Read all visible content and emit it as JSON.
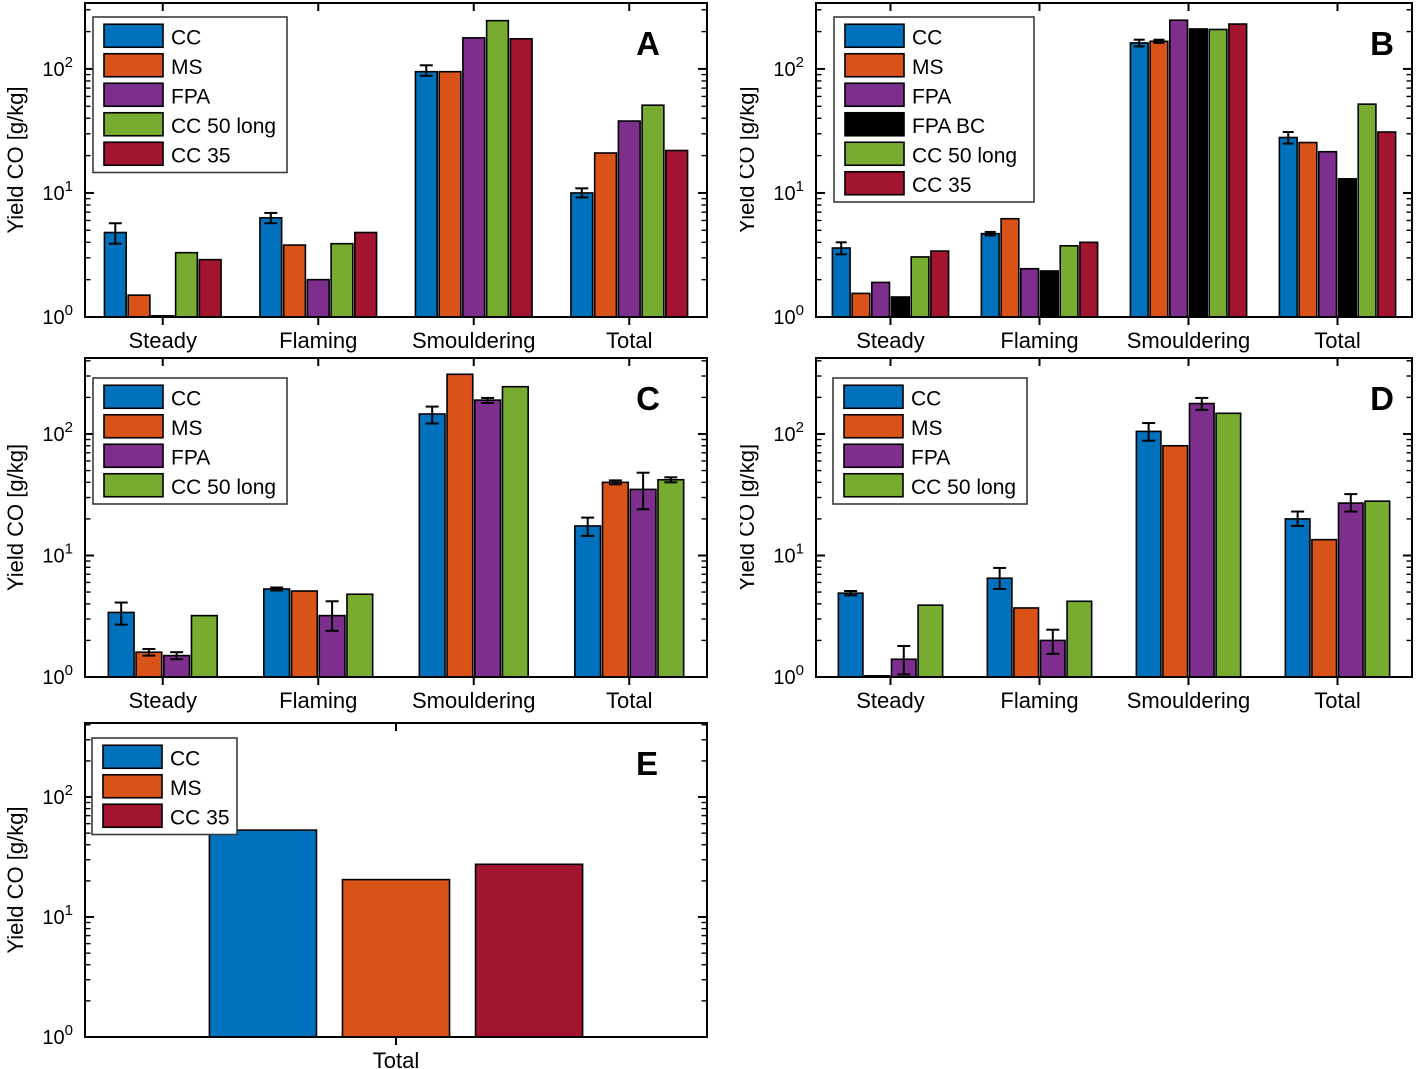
{
  "figure": {
    "background": "#ffffff",
    "axis_color": "#000000",
    "bar_edge_color": "#000000",
    "legend_border_color": "#3b3b3b",
    "ylabel": "Yield CO [g/kg]"
  },
  "chart_data": [
    {
      "id": "A",
      "type": "bar",
      "yscale": "log",
      "panel_label": "A",
      "ylabel": "Yield CO [g/kg]",
      "categories": [
        "Steady",
        "Flaming",
        "Smouldering",
        "Total"
      ],
      "ylim": [
        1,
        340
      ],
      "yticks": [
        1,
        10,
        100
      ],
      "grid": false,
      "legend_position": "top-left",
      "series": [
        {
          "name": "CC",
          "color": "#0072BD",
          "values": [
            4.8,
            6.3,
            95,
            10
          ],
          "errors": [
            [
              3.9,
              5.7
            ],
            [
              5.7,
              6.9
            ],
            [
              88,
              107
            ],
            [
              9.2,
              10.9
            ]
          ]
        },
        {
          "name": "MS",
          "color": "#D95319",
          "values": [
            1.5,
            3.8,
            95,
            21
          ],
          "errors": [
            null,
            null,
            null,
            null
          ]
        },
        {
          "name": "FPA",
          "color": "#7E2F8E",
          "values": [
            1.0,
            2.0,
            178,
            38
          ],
          "errors": [
            null,
            null,
            null,
            null
          ]
        },
        {
          "name": "CC 50 long",
          "color": "#77AC30",
          "values": [
            3.3,
            3.9,
            245,
            51
          ],
          "errors": [
            null,
            null,
            null,
            null
          ]
        },
        {
          "name": "CC 35",
          "color": "#A2142F",
          "values": [
            2.9,
            4.8,
            175,
            22
          ],
          "errors": [
            null,
            null,
            null,
            null
          ]
        }
      ]
    },
    {
      "id": "B",
      "type": "bar",
      "yscale": "log",
      "panel_label": "B",
      "ylabel": "Yield CO [g/kg]",
      "categories": [
        "Steady",
        "Flaming",
        "Smouldering",
        "Total"
      ],
      "ylim": [
        1,
        340
      ],
      "yticks": [
        1,
        10,
        100
      ],
      "grid": false,
      "legend_position": "top-left",
      "series": [
        {
          "name": "CC",
          "color": "#0072BD",
          "values": [
            3.6,
            4.7,
            162,
            28
          ],
          "errors": [
            [
              3.2,
              4.0
            ],
            [
              4.55,
              4.85
            ],
            [
              152,
              172
            ],
            [
              25,
              31
            ]
          ]
        },
        {
          "name": "MS",
          "color": "#D95319",
          "values": [
            1.55,
            6.2,
            167,
            25.5
          ],
          "errors": [
            null,
            null,
            [
              162,
              172
            ],
            null
          ]
        },
        {
          "name": "FPA",
          "color": "#7E2F8E",
          "values": [
            1.9,
            2.45,
            247,
            21.5
          ],
          "errors": [
            null,
            null,
            null,
            null
          ]
        },
        {
          "name": "FPA BC",
          "color": "#000000",
          "values": [
            1.45,
            2.35,
            210,
            13
          ],
          "errors": [
            null,
            null,
            null,
            null
          ]
        },
        {
          "name": "CC 50 long",
          "color": "#77AC30",
          "values": [
            3.05,
            3.75,
            208,
            52
          ],
          "errors": [
            null,
            null,
            null,
            null
          ]
        },
        {
          "name": "CC 35",
          "color": "#A2142F",
          "values": [
            3.4,
            4.0,
            230,
            31
          ],
          "errors": [
            null,
            null,
            null,
            null
          ]
        }
      ]
    },
    {
      "id": "C",
      "type": "bar",
      "yscale": "log",
      "panel_label": "C",
      "ylabel": "Yield CO [g/kg]",
      "categories": [
        "Steady",
        "Flaming",
        "Smouldering",
        "Total"
      ],
      "ylim": [
        1,
        422
      ],
      "yticks": [
        1,
        10,
        100
      ],
      "grid": false,
      "legend_position": "top-left",
      "series": [
        {
          "name": "CC",
          "color": "#0072BD",
          "values": [
            3.4,
            5.3,
            146,
            17.5
          ],
          "errors": [
            [
              2.7,
              4.1
            ],
            [
              5.15,
              5.45
            ],
            [
              122,
              168
            ],
            [
              14.5,
              20.5
            ]
          ]
        },
        {
          "name": "MS",
          "color": "#D95319",
          "values": [
            1.6,
            5.1,
            310,
            40
          ],
          "errors": [
            [
              1.5,
              1.7
            ],
            null,
            null,
            [
              38.5,
              41.5
            ]
          ]
        },
        {
          "name": "FPA",
          "color": "#7E2F8E",
          "values": [
            1.5,
            3.2,
            190,
            35
          ],
          "errors": [
            [
              1.4,
              1.6
            ],
            [
              2.4,
              4.2
            ],
            [
              180,
              198
            ],
            [
              24,
              48
            ]
          ]
        },
        {
          "name": "CC 50 long",
          "color": "#77AC30",
          "values": [
            3.2,
            4.8,
            245,
            42
          ],
          "errors": [
            null,
            null,
            null,
            [
              40,
              44
            ]
          ]
        }
      ]
    },
    {
      "id": "D",
      "type": "bar",
      "yscale": "log",
      "panel_label": "D",
      "ylabel": "Yield CO [g/kg]",
      "categories": [
        "Steady",
        "Flaming",
        "Smouldering",
        "Total"
      ],
      "ylim": [
        1,
        422
      ],
      "yticks": [
        1,
        10,
        100
      ],
      "grid": false,
      "legend_position": "top-left",
      "series": [
        {
          "name": "CC",
          "color": "#0072BD",
          "values": [
            4.9,
            6.5,
            105,
            20
          ],
          "errors": [
            [
              4.7,
              5.1
            ],
            [
              5.3,
              7.9
            ],
            [
              88,
              123
            ],
            [
              17.5,
              23
            ]
          ]
        },
        {
          "name": "MS",
          "color": "#D95319",
          "values": [
            1.02,
            3.7,
            80,
            13.5
          ],
          "errors": [
            null,
            null,
            null,
            null
          ]
        },
        {
          "name": "FPA",
          "color": "#7E2F8E",
          "values": [
            1.4,
            2.0,
            178,
            27
          ],
          "errors": [
            [
              1.05,
              1.8
            ],
            [
              1.55,
              2.45
            ],
            [
              158,
              198
            ],
            [
              23,
              32
            ]
          ]
        },
        {
          "name": "CC 50 long",
          "color": "#77AC30",
          "values": [
            3.9,
            4.2,
            148,
            28
          ],
          "errors": [
            null,
            null,
            null,
            null
          ]
        }
      ]
    },
    {
      "id": "E",
      "type": "bar",
      "yscale": "log",
      "panel_label": "E",
      "ylabel": "Yield CO [g/kg]",
      "categories": [
        "Total"
      ],
      "ylim": [
        1,
        414
      ],
      "yticks": [
        1,
        10,
        100
      ],
      "grid": false,
      "legend_position": "top-left",
      "series": [
        {
          "name": "CC",
          "color": "#0072BD",
          "values": [
            53
          ],
          "errors": [
            null
          ]
        },
        {
          "name": "MS",
          "color": "#D95319",
          "values": [
            20.5
          ],
          "errors": [
            null
          ]
        },
        {
          "name": "CC 35",
          "color": "#A2142F",
          "values": [
            27.5
          ],
          "errors": [
            null
          ]
        }
      ]
    }
  ]
}
